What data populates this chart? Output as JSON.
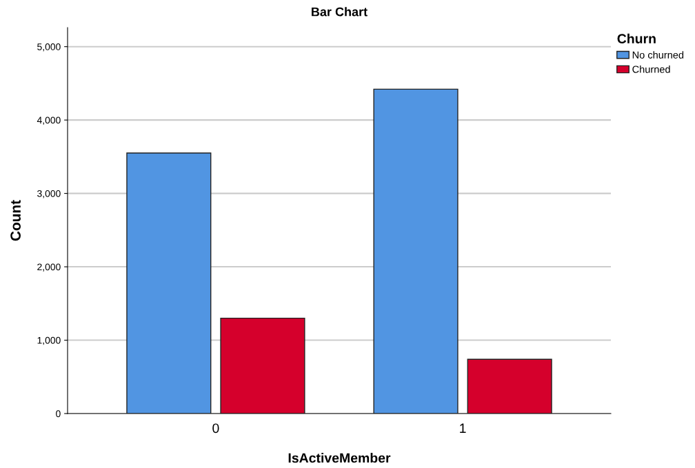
{
  "chart_data": {
    "type": "bar",
    "title": "Bar Chart",
    "xlabel": "IsActiveMember",
    "ylabel": "Count",
    "legend_title": "Churn",
    "categories": [
      "0",
      "1"
    ],
    "series": [
      {
        "name": "No churned",
        "color": "#5195e2",
        "values": [
          3550,
          4420
        ]
      },
      {
        "name": "Churned",
        "color": "#d5002c",
        "values": [
          1300,
          740
        ]
      }
    ],
    "ylim": [
      0,
      5260
    ],
    "yticks": [
      {
        "value": 0,
        "label": "0"
      },
      {
        "value": 1000,
        "label": "1,000"
      },
      {
        "value": 2000,
        "label": "2,000"
      },
      {
        "value": 3000,
        "label": "3,000"
      },
      {
        "value": 4000,
        "label": "4,000"
      },
      {
        "value": 5000,
        "label": "5,000"
      }
    ],
    "grid": "y",
    "legend": "top right"
  }
}
